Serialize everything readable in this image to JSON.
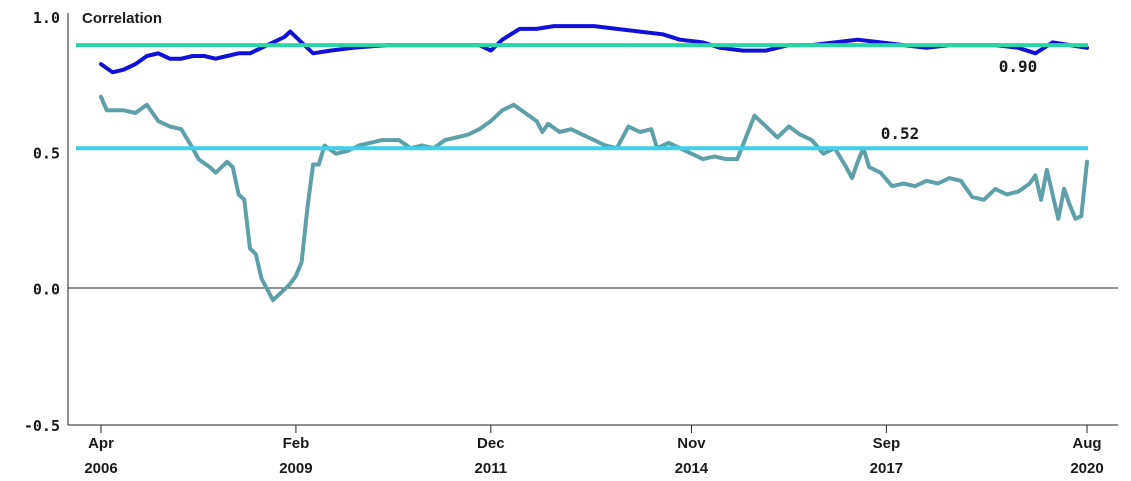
{
  "chart_data": {
    "type": "line",
    "ylabel": "Correlation",
    "ylim": [
      -0.5,
      1.0
    ],
    "yticks": [
      "1.0",
      "0.5",
      "0.0",
      "-0.5"
    ],
    "x_range": [
      "2006-04",
      "2020-08"
    ],
    "xticks": [
      {
        "month": "Apr",
        "year": "2006",
        "date": "2006-04"
      },
      {
        "month": "Feb",
        "year": "2009",
        "date": "2009-02"
      },
      {
        "month": "Dec",
        "year": "2011",
        "date": "2011-12"
      },
      {
        "month": "Nov",
        "year": "2014",
        "date": "2014-11"
      },
      {
        "month": "Sep",
        "year": "2017",
        "date": "2017-09"
      },
      {
        "month": "Aug",
        "year": "2020",
        "date": "2020-08"
      }
    ],
    "grid": false,
    "series": [
      {
        "color": "#1010d8",
        "points": [
          [
            "2006-04",
            0.83
          ],
          [
            "2006-06",
            0.8
          ],
          [
            "2006-08",
            0.81
          ],
          [
            "2006-10",
            0.83
          ],
          [
            "2006-12",
            0.86
          ],
          [
            "2007-02",
            0.87
          ],
          [
            "2007-04",
            0.85
          ],
          [
            "2007-06",
            0.85
          ],
          [
            "2007-08",
            0.86
          ],
          [
            "2007-10",
            0.86
          ],
          [
            "2007-12",
            0.85
          ],
          [
            "2008-02",
            0.86
          ],
          [
            "2008-04",
            0.87
          ],
          [
            "2008-06",
            0.87
          ],
          [
            "2008-08",
            0.89
          ],
          [
            "2008-10",
            0.91
          ],
          [
            "2008-12",
            0.93
          ],
          [
            "2009-01",
            0.95
          ],
          [
            "2009-03",
            0.91
          ],
          [
            "2009-05",
            0.87
          ],
          [
            "2009-08",
            0.88
          ],
          [
            "2009-12",
            0.89
          ],
          [
            "2010-06",
            0.9
          ],
          [
            "2010-12",
            0.9
          ],
          [
            "2011-06",
            0.9
          ],
          [
            "2011-10",
            0.9
          ],
          [
            "2011-12",
            0.88
          ],
          [
            "2012-02",
            0.92
          ],
          [
            "2012-05",
            0.96
          ],
          [
            "2012-08",
            0.96
          ],
          [
            "2012-11",
            0.97
          ],
          [
            "2013-03",
            0.97
          ],
          [
            "2013-06",
            0.97
          ],
          [
            "2013-10",
            0.96
          ],
          [
            "2014-02",
            0.95
          ],
          [
            "2014-06",
            0.94
          ],
          [
            "2014-09",
            0.92
          ],
          [
            "2015-01",
            0.91
          ],
          [
            "2015-04",
            0.89
          ],
          [
            "2015-08",
            0.88
          ],
          [
            "2015-12",
            0.88
          ],
          [
            "2016-04",
            0.9
          ],
          [
            "2016-08",
            0.9
          ],
          [
            "2016-12",
            0.91
          ],
          [
            "2017-04",
            0.92
          ],
          [
            "2017-08",
            0.91
          ],
          [
            "2017-12",
            0.9
          ],
          [
            "2018-04",
            0.89
          ],
          [
            "2018-08",
            0.9
          ],
          [
            "2018-12",
            0.9
          ],
          [
            "2019-04",
            0.9
          ],
          [
            "2019-08",
            0.89
          ],
          [
            "2019-11",
            0.87
          ],
          [
            "2020-02",
            0.91
          ],
          [
            "2020-05",
            0.9
          ],
          [
            "2020-08",
            0.89
          ]
        ]
      },
      {
        "color": "#5fa0a8",
        "points": [
          [
            "2006-04",
            0.71
          ],
          [
            "2006-05",
            0.66
          ],
          [
            "2006-08",
            0.66
          ],
          [
            "2006-10",
            0.65
          ],
          [
            "2006-12",
            0.68
          ],
          [
            "2007-02",
            0.62
          ],
          [
            "2007-04",
            0.6
          ],
          [
            "2007-06",
            0.59
          ],
          [
            "2007-08",
            0.52
          ],
          [
            "2007-09",
            0.48
          ],
          [
            "2007-11",
            0.45
          ],
          [
            "2007-12",
            0.43
          ],
          [
            "2008-02",
            0.47
          ],
          [
            "2008-03",
            0.45
          ],
          [
            "2008-04",
            0.35
          ],
          [
            "2008-05",
            0.33
          ],
          [
            "2008-06",
            0.15
          ],
          [
            "2008-07",
            0.13
          ],
          [
            "2008-08",
            0.04
          ],
          [
            "2008-10",
            -0.04
          ],
          [
            "2008-11",
            -0.02
          ],
          [
            "2009-01",
            0.02
          ],
          [
            "2009-02",
            0.05
          ],
          [
            "2009-03",
            0.1
          ],
          [
            "2009-04",
            0.3
          ],
          [
            "2009-05",
            0.46
          ],
          [
            "2009-06",
            0.46
          ],
          [
            "2009-07",
            0.53
          ],
          [
            "2009-09",
            0.5
          ],
          [
            "2009-11",
            0.51
          ],
          [
            "2010-01",
            0.53
          ],
          [
            "2010-03",
            0.54
          ],
          [
            "2010-05",
            0.55
          ],
          [
            "2010-08",
            0.55
          ],
          [
            "2010-10",
            0.52
          ],
          [
            "2010-12",
            0.53
          ],
          [
            "2011-02",
            0.52
          ],
          [
            "2011-04",
            0.55
          ],
          [
            "2011-06",
            0.56
          ],
          [
            "2011-08",
            0.57
          ],
          [
            "2011-10",
            0.59
          ],
          [
            "2011-12",
            0.62
          ],
          [
            "2012-02",
            0.66
          ],
          [
            "2012-04",
            0.68
          ],
          [
            "2012-06",
            0.65
          ],
          [
            "2012-08",
            0.62
          ],
          [
            "2012-09",
            0.58
          ],
          [
            "2012-10",
            0.61
          ],
          [
            "2012-12",
            0.58
          ],
          [
            "2013-02",
            0.59
          ],
          [
            "2013-04",
            0.57
          ],
          [
            "2013-06",
            0.55
          ],
          [
            "2013-08",
            0.53
          ],
          [
            "2013-10",
            0.52
          ],
          [
            "2013-12",
            0.6
          ],
          [
            "2014-02",
            0.58
          ],
          [
            "2014-04",
            0.59
          ],
          [
            "2014-05",
            0.52
          ],
          [
            "2014-07",
            0.54
          ],
          [
            "2014-09",
            0.52
          ],
          [
            "2014-11",
            0.5
          ],
          [
            "2015-01",
            0.48
          ],
          [
            "2015-03",
            0.49
          ],
          [
            "2015-05",
            0.48
          ],
          [
            "2015-07",
            0.48
          ],
          [
            "2015-10",
            0.64
          ],
          [
            "2015-12",
            0.6
          ],
          [
            "2016-02",
            0.56
          ],
          [
            "2016-04",
            0.6
          ],
          [
            "2016-06",
            0.57
          ],
          [
            "2016-08",
            0.55
          ],
          [
            "2016-10",
            0.5
          ],
          [
            "2016-12",
            0.52
          ],
          [
            "2017-02",
            0.45
          ],
          [
            "2017-03",
            0.41
          ],
          [
            "2017-04",
            0.47
          ],
          [
            "2017-05",
            0.52
          ],
          [
            "2017-06",
            0.45
          ],
          [
            "2017-08",
            0.43
          ],
          [
            "2017-10",
            0.38
          ],
          [
            "2017-12",
            0.39
          ],
          [
            "2018-02",
            0.38
          ],
          [
            "2018-04",
            0.4
          ],
          [
            "2018-06",
            0.39
          ],
          [
            "2018-08",
            0.41
          ],
          [
            "2018-10",
            0.4
          ],
          [
            "2018-12",
            0.34
          ],
          [
            "2019-02",
            0.33
          ],
          [
            "2019-04",
            0.37
          ],
          [
            "2019-06",
            0.35
          ],
          [
            "2019-08",
            0.36
          ],
          [
            "2019-10",
            0.39
          ],
          [
            "2019-11",
            0.42
          ],
          [
            "2019-12",
            0.33
          ],
          [
            "2020-01",
            0.44
          ],
          [
            "2020-02",
            0.35
          ],
          [
            "2020-03",
            0.26
          ],
          [
            "2020-04",
            0.37
          ],
          [
            "2020-05",
            0.31
          ],
          [
            "2020-06",
            0.26
          ],
          [
            "2020-07",
            0.27
          ],
          [
            "2020-08",
            0.47
          ]
        ]
      }
    ],
    "reference_lines": [
      {
        "value": 0.9,
        "label": "0.90",
        "color": "#2ad6a8"
      },
      {
        "value": 0.52,
        "label": "0.52",
        "color": "#3cd0ec"
      }
    ]
  }
}
